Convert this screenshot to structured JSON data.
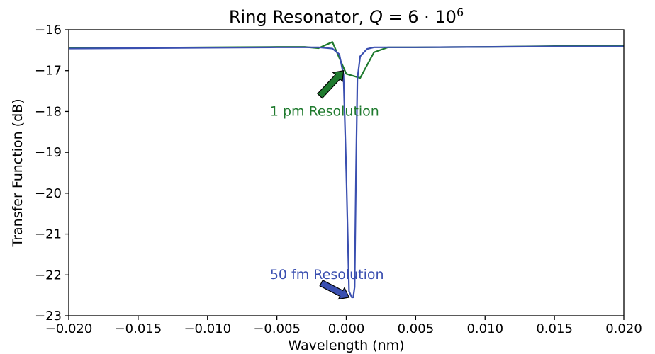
{
  "chart_data": {
    "type": "line",
    "title_main": "Ring Resonator, ",
    "title_q": "Q",
    "title_eq": " = 6 · 10",
    "title_sup": "6",
    "xlabel": "Wavelength (nm)",
    "ylabel": "Transfer Function (dB)",
    "xlim": [
      -0.02,
      0.02
    ],
    "ylim": [
      -23,
      -16
    ],
    "xticks": [
      -0.02,
      -0.015,
      -0.01,
      -0.005,
      0.0,
      0.005,
      0.01,
      0.015,
      0.02
    ],
    "xtick_labels": [
      "−0.020",
      "−0.015",
      "−0.010",
      "−0.005",
      "0.000",
      "0.005",
      "0.010",
      "0.015",
      "0.020"
    ],
    "yticks": [
      -16,
      -17,
      -18,
      -19,
      -20,
      -21,
      -22,
      -23
    ],
    "ytick_labels": [
      "−16",
      "−17",
      "−18",
      "−19",
      "−20",
      "−21",
      "−22",
      "−23"
    ],
    "grid": false,
    "series": [
      {
        "color": "#1f7a2e",
        "x": [
          -0.02,
          -0.015,
          -0.01,
          -0.005,
          -0.003,
          -0.002,
          -0.001,
          0.0,
          0.001,
          0.002,
          0.003,
          0.005,
          0.01,
          0.015,
          0.02
        ],
        "y": [
          -16.45,
          -16.44,
          -16.43,
          -16.42,
          -16.42,
          -16.45,
          -16.3,
          -17.08,
          -17.18,
          -16.55,
          -16.43,
          -16.43,
          -16.42,
          -16.4,
          -16.4
        ]
      },
      {
        "color": "#3a4fb0",
        "x": [
          -0.02,
          -0.015,
          -0.01,
          -0.005,
          -0.002,
          -0.001,
          -0.0005,
          -0.0002,
          0.0,
          0.0002,
          0.0004,
          0.0005,
          0.0006,
          0.0007,
          0.0008,
          0.001,
          0.0015,
          0.002,
          0.005,
          0.01,
          0.015,
          0.02
        ],
        "y": [
          -16.46,
          -16.45,
          -16.44,
          -16.43,
          -16.43,
          -16.46,
          -16.6,
          -17.1,
          -19.5,
          -22.4,
          -22.55,
          -22.55,
          -22.3,
          -19.5,
          -17.2,
          -16.65,
          -16.47,
          -16.43,
          -16.43,
          -16.42,
          -16.41,
          -16.41
        ]
      }
    ],
    "annotations": [
      {
        "text": "1 pm Resolution",
        "color": "#1f7a2e",
        "x": -0.0055,
        "y": -17.98,
        "arrow_from": [
          -0.0019,
          -17.62
        ],
        "arrow_to": [
          -0.0002,
          -17.0
        ]
      },
      {
        "text": "50 fm Resolution",
        "color": "#3a4fb0",
        "x": -0.0055,
        "y": -21.98,
        "arrow_from": [
          -0.0018,
          -22.2
        ],
        "arrow_to": [
          0.0002,
          -22.55
        ]
      }
    ]
  }
}
